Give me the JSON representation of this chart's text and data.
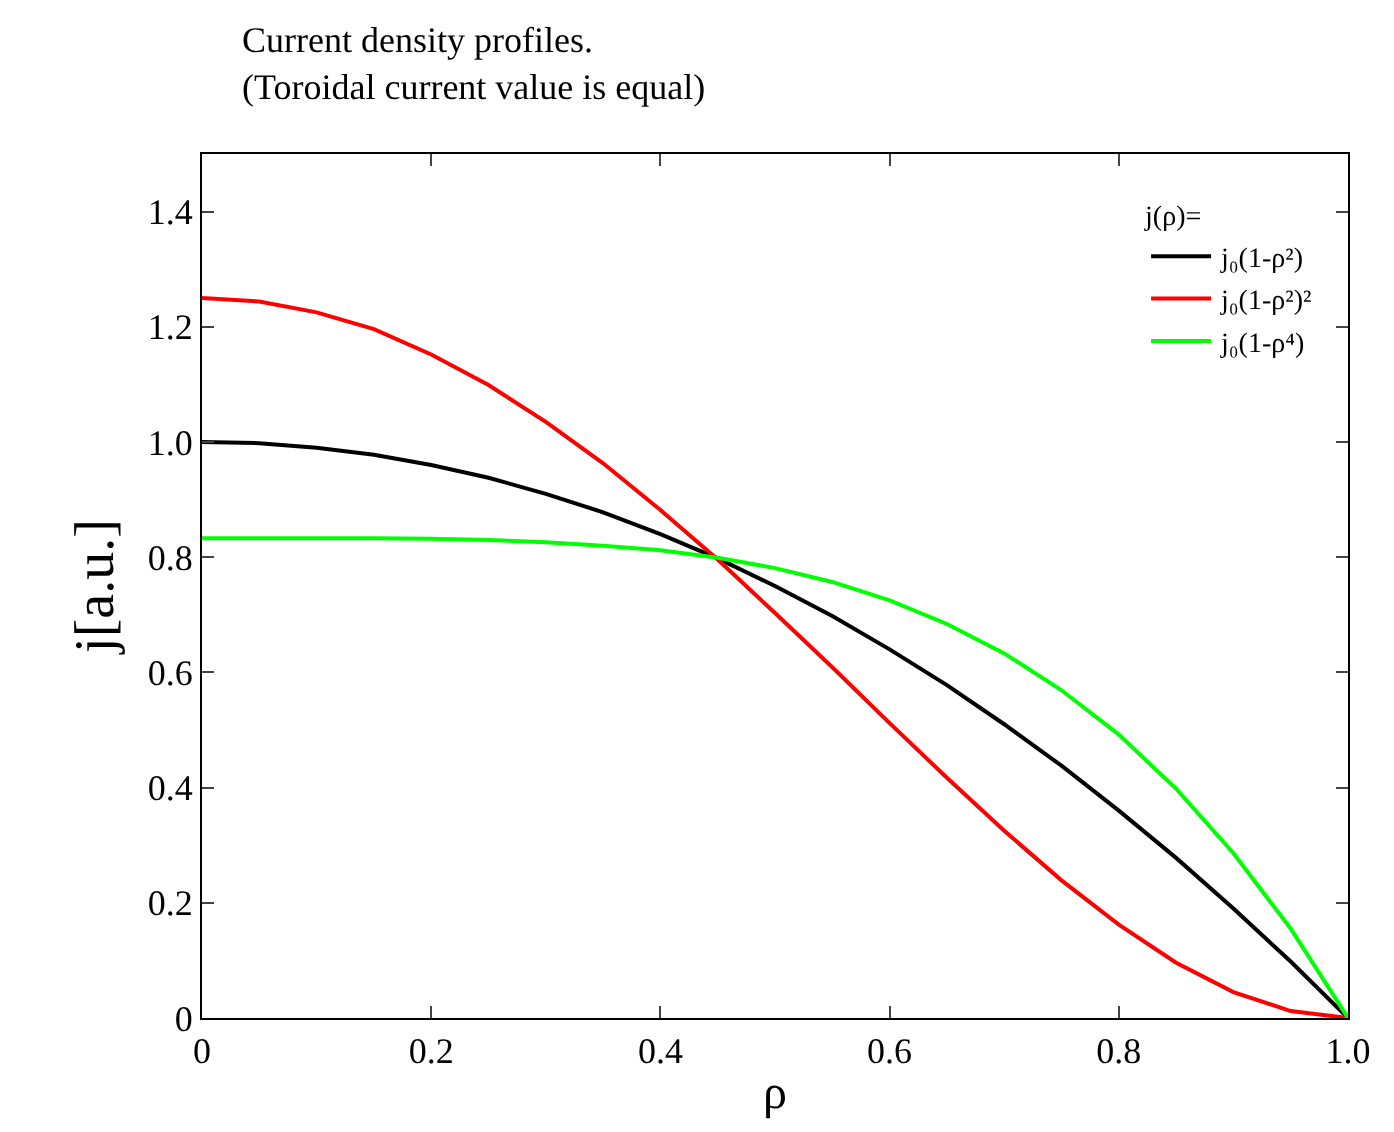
{
  "chart_data": {
    "type": "line",
    "title": "Current density profiles.",
    "subtitle": "(Toroidal current value is equal)",
    "xlabel": "ρ",
    "ylabel": "j[a.u.]",
    "legend_title": "j(ρ)=",
    "x": [
      0,
      0.05,
      0.1,
      0.15,
      0.2,
      0.25,
      0.3,
      0.35,
      0.4,
      0.45,
      0.5,
      0.55,
      0.6,
      0.65,
      0.7,
      0.75,
      0.8,
      0.85,
      0.9,
      0.95,
      1.0
    ],
    "series": [
      {
        "name": "j₀(1-ρ²)",
        "color": "#000000",
        "values": [
          1.0,
          0.998,
          0.99,
          0.978,
          0.96,
          0.938,
          0.91,
          0.878,
          0.84,
          0.798,
          0.75,
          0.698,
          0.64,
          0.578,
          0.51,
          0.438,
          0.36,
          0.278,
          0.19,
          0.098,
          0
        ]
      },
      {
        "name": "j₀(1-ρ²)²",
        "color": "#ff0000",
        "values": [
          1.25,
          1.244,
          1.225,
          1.196,
          1.152,
          1.099,
          1.035,
          0.963,
          0.882,
          0.796,
          0.703,
          0.609,
          0.512,
          0.417,
          0.325,
          0.239,
          0.162,
          0.096,
          0.045,
          0.012,
          0
        ]
      },
      {
        "name": "j₀(1-ρ⁴)",
        "color": "#00ff00",
        "values": [
          0.833,
          0.833,
          0.833,
          0.833,
          0.832,
          0.83,
          0.826,
          0.82,
          0.812,
          0.799,
          0.781,
          0.757,
          0.725,
          0.684,
          0.633,
          0.569,
          0.492,
          0.398,
          0.286,
          0.155,
          0
        ]
      }
    ],
    "xlim": [
      0,
      1.0
    ],
    "xticks": [
      0,
      0.2,
      0.4,
      0.6,
      0.8,
      {
        "value": 1.0,
        "label": "1.0"
      }
    ],
    "ylim": [
      0,
      1.5
    ],
    "yticks": [
      0,
      0.2,
      0.4,
      0.6,
      0.8,
      {
        "value": 1.0,
        "label": "1.0"
      },
      1.2,
      1.4
    ],
    "legend": "top right",
    "marker": "none",
    "line_style": "solid"
  }
}
